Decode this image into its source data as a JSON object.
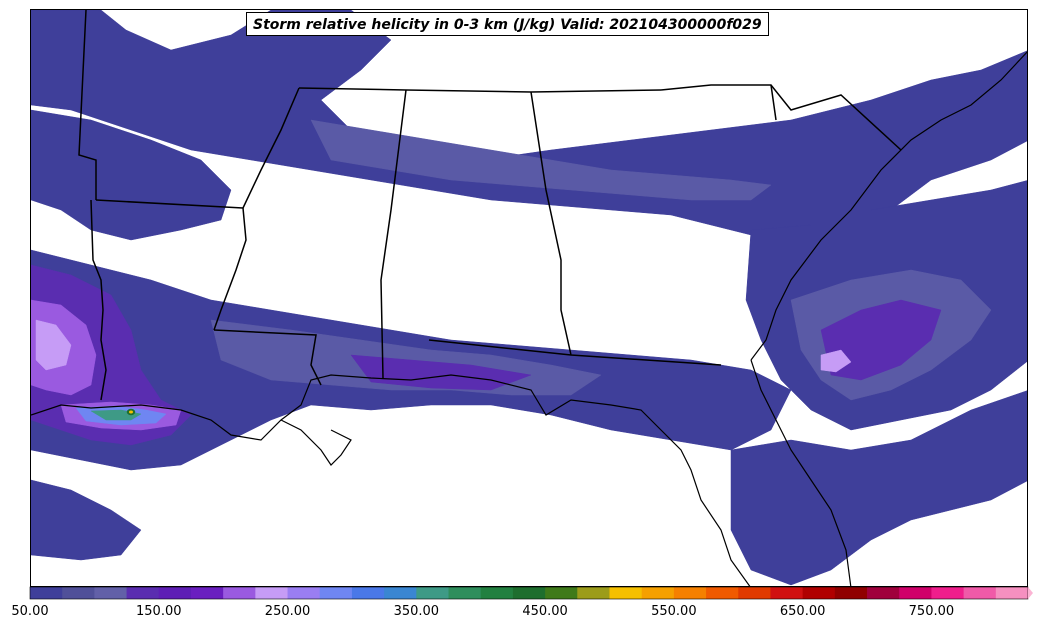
{
  "title": "Storm relative helicity in 0-3 km (J/kg) Valid: 202104300000f029",
  "map": {
    "background": "#ffffff",
    "fill_colors": {
      "level_50": "#3f3f9a",
      "level_75": "#5a5aa6",
      "level_100": "#6c5fb5",
      "level_125": "#5a2db0",
      "level_150": "#6a1fc0",
      "level_200": "#9a5ae0",
      "level_250": "#c69cf6",
      "level_300": "#6f86f2",
      "level_350": "#3e9a86",
      "level_400": "#1e6e2e"
    },
    "border_color": "#000000"
  },
  "colorbar": {
    "levels": [
      50,
      75,
      100,
      125,
      150,
      175,
      200,
      225,
      250,
      275,
      300,
      325,
      350,
      375,
      400,
      425,
      450,
      475,
      500,
      525,
      550,
      575,
      600,
      625,
      650,
      675,
      700,
      725,
      750,
      775,
      800
    ],
    "colors": [
      "#3f3f9a",
      "#505099",
      "#6260a8",
      "#5a2db0",
      "#5e1eb5",
      "#6a1fc0",
      "#9a5ae0",
      "#c69cf6",
      "#9a7ef2",
      "#6f86f2",
      "#4a78e8",
      "#3a86d2",
      "#3e9a86",
      "#2f8e5c",
      "#228040",
      "#1e6e2e",
      "#3f7a1a",
      "#9c9c1a",
      "#f5c000",
      "#f5a000",
      "#f58000",
      "#f05a00",
      "#e03a00",
      "#d01010",
      "#b00000",
      "#900000",
      "#a0003c",
      "#d0006a",
      "#f01e8c",
      "#f05aa8",
      "#f590c0"
    ],
    "extend_color": "#fbb4d4",
    "tick_labels": [
      "50.00",
      "150.00",
      "250.00",
      "350.00",
      "450.00",
      "550.00",
      "650.00",
      "750.00"
    ],
    "tick_values": [
      50,
      150,
      250,
      350,
      450,
      550,
      650,
      750
    ]
  }
}
